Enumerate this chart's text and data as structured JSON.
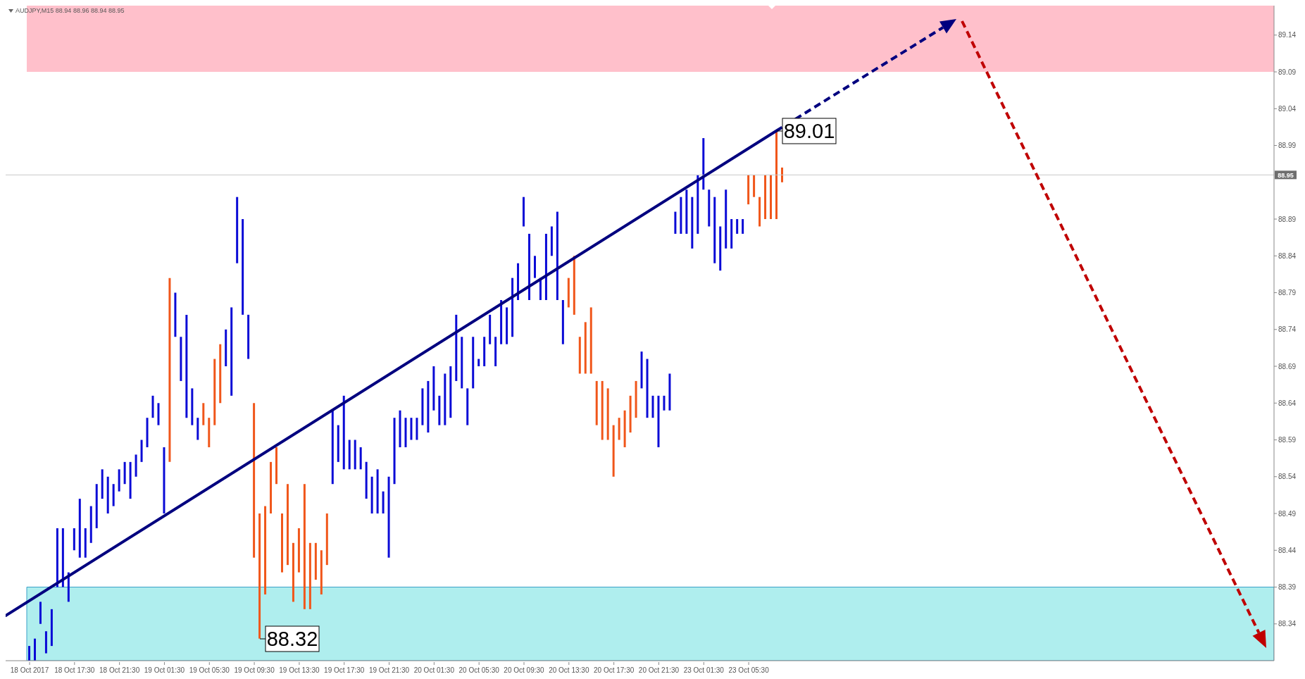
{
  "chart_data": {
    "type": "bar",
    "title": "AUDJPY,M15  88.94 88.96 88.94 88.95",
    "categories": [
      "18 Oct 2017",
      null,
      null,
      null,
      null,
      null,
      null,
      null,
      "18 Oct 17:30",
      null,
      null,
      null,
      null,
      null,
      null,
      null,
      "18 Oct 21:30",
      null,
      null,
      null,
      null,
      null,
      null,
      null,
      "19 Oct 01:30",
      null,
      null,
      null,
      null,
      null,
      null,
      null,
      "19 Oct 05:30",
      null,
      null,
      null,
      null,
      null,
      null,
      null,
      "19 Oct 09:30",
      null,
      null,
      null,
      null,
      null,
      null,
      null,
      "19 Oct 13:30",
      null,
      null,
      null,
      null,
      null,
      null,
      null,
      "19 Oct 17:30",
      null,
      null,
      null,
      null,
      null,
      null,
      null,
      "19 Oct 21:30",
      null,
      null,
      null,
      null,
      null,
      null,
      null,
      "20 Oct 01:30",
      null,
      null,
      null,
      null,
      null,
      null,
      null,
      "20 Oct 05:30",
      null,
      null,
      null,
      null,
      null,
      null,
      null,
      "20 Oct 09:30",
      null,
      null,
      null,
      null,
      null,
      null,
      null,
      "20 Oct 13:30",
      null,
      null,
      null,
      null,
      null,
      null,
      null,
      "20 Oct 17:30",
      null,
      null,
      null,
      null,
      null,
      null,
      null,
      "20 Oct 21:30",
      null,
      null,
      null,
      null,
      null,
      null,
      null,
      "23 Oct 01:30",
      null,
      null,
      null,
      null,
      null,
      null,
      null,
      "23 Oct 05:30",
      null,
      null,
      null,
      null,
      null,
      null,
      null,
      null,
      null,
      null,
      null,
      null,
      null,
      null,
      null,
      null,
      null,
      null,
      null,
      null,
      null,
      null,
      null,
      null,
      null,
      null,
      null,
      null,
      null,
      null,
      null,
      null,
      null,
      null,
      null,
      null,
      null,
      null,
      null,
      null,
      null,
      null,
      null,
      null,
      null,
      null,
      null,
      null,
      null,
      null,
      null,
      null,
      null,
      null,
      null,
      null,
      null,
      null,
      null,
      null,
      null,
      null,
      null,
      null,
      null,
      null,
      null,
      null,
      null,
      null,
      null,
      null,
      null,
      null,
      null,
      null,
      null,
      null,
      null,
      null,
      null,
      null,
      null,
      null,
      null,
      null,
      null,
      null,
      null,
      null,
      null,
      null,
      null
    ],
    "base": [
      88.29,
      88.29,
      88.34,
      88.3,
      88.31,
      88.39,
      88.39,
      88.37,
      88.44,
      88.43,
      88.43,
      88.45,
      88.47,
      88.51,
      88.49,
      88.5,
      88.52,
      88.53,
      88.51,
      88.54,
      88.56,
      88.58,
      88.62,
      88.61,
      88.49,
      88.56,
      88.73,
      88.67,
      88.62,
      88.61,
      88.59,
      88.61,
      88.58,
      88.61,
      88.64,
      88.69,
      88.65,
      88.83,
      88.76,
      88.7,
      88.43,
      88.32,
      88.38,
      88.49,
      88.53,
      88.41,
      88.42,
      88.37,
      88.41,
      88.36,
      88.36,
      88.4,
      88.38,
      88.42,
      88.53,
      88.56,
      88.55,
      88.55,
      88.55,
      88.55,
      88.51,
      88.49,
      88.49,
      88.49,
      88.43,
      88.53,
      88.58,
      88.58,
      88.59,
      88.59,
      88.61,
      88.6,
      88.63,
      88.61,
      88.61,
      88.62,
      88.67,
      88.66,
      88.61,
      88.66,
      88.69,
      88.69,
      88.72,
      88.69,
      88.72,
      88.72,
      88.73,
      88.78,
      88.88,
      88.78,
      88.81,
      88.78,
      88.78,
      88.84,
      88.78,
      88.72,
      88.77,
      88.76,
      88.68,
      88.68,
      88.68,
      88.61,
      88.59,
      88.59,
      88.54,
      88.59,
      88.58,
      88.6,
      88.62,
      88.66,
      88.62,
      88.62,
      88.58,
      88.63,
      88.63,
      88.87,
      88.87,
      88.87,
      88.85,
      88.87,
      88.93,
      88.88,
      88.83,
      88.82,
      88.85,
      88.85,
      88.87,
      88.87,
      88.91,
      88.92,
      88.88,
      88.89,
      88.89,
      88.89,
      88.94,
      null,
      null,
      null,
      null,
      null,
      null,
      null,
      null,
      null,
      null,
      null,
      null,
      null,
      null,
      null,
      null,
      null,
      null,
      null,
      null,
      null,
      null,
      null,
      null,
      null,
      null,
      null,
      null,
      null,
      null,
      null,
      null,
      null,
      null,
      null,
      null,
      null,
      null,
      null,
      null,
      null,
      null,
      null,
      null,
      null,
      null,
      null,
      null,
      null,
      null,
      null,
      null,
      null,
      null,
      null,
      null,
      null,
      null,
      null,
      null,
      null,
      null,
      null,
      null,
      null,
      null,
      null,
      null,
      null,
      null,
      null,
      null,
      null,
      null,
      null,
      null,
      null,
      null,
      null,
      null,
      null,
      null,
      null,
      null,
      null,
      null,
      null
    ],
    "values": [
      0.02,
      0.03,
      0.03,
      0.03,
      0.05,
      0.08,
      0.08,
      0.04,
      0.03,
      0.08,
      0.04,
      0.05,
      0.06,
      0.04,
      0.05,
      0.03,
      0.03,
      0.03,
      0.05,
      0.03,
      0.03,
      0.04,
      0.03,
      0.03,
      0.09,
      0.25,
      0.06,
      0.06,
      0.14,
      0.05,
      0.03,
      0.03,
      0.04,
      0.09,
      0.08,
      0.05,
      0.12,
      0.09,
      0.13,
      0.06,
      0.21,
      0.17,
      0.12,
      0.07,
      0.05,
      0.08,
      0.11,
      0.08,
      0.06,
      0.17,
      0.09,
      0.05,
      0.06,
      0.07,
      0.1,
      0.05,
      0.1,
      0.04,
      0.04,
      0.03,
      0.05,
      0.05,
      0.06,
      0.03,
      0.11,
      0.09,
      0.05,
      0.04,
      0.03,
      0.03,
      0.05,
      0.07,
      0.06,
      0.04,
      0.07,
      0.07,
      0.09,
      0.07,
      0.05,
      0.07,
      0.01,
      0.04,
      0.04,
      0.04,
      0.06,
      0.05,
      0.08,
      0.05,
      0.04,
      0.09,
      0.03,
      0.03,
      0.09,
      0.04,
      0.12,
      0.06,
      0.04,
      0.08,
      0.05,
      0.07,
      0.09,
      0.06,
      0.08,
      0.07,
      0.07,
      0.03,
      0.05,
      0.05,
      0.05,
      0.05,
      0.08,
      0.03,
      0.07,
      0.02,
      0.05,
      0.03,
      0.05,
      0.06,
      0.07,
      0.08,
      0.07,
      0.05,
      0.09,
      0.06,
      0.08,
      0.04,
      0.02,
      0.02,
      0.04,
      0.03,
      0.04,
      0.06,
      0.06,
      0.12,
      0.02,
      null,
      null,
      null,
      null,
      null,
      null,
      null,
      null,
      null,
      null,
      null,
      null,
      null,
      null,
      null,
      null,
      null,
      null,
      null,
      null,
      null,
      null,
      null,
      null,
      null,
      null,
      null,
      null,
      null,
      null,
      null,
      null,
      null,
      null,
      null,
      null,
      null,
      null,
      null,
      null,
      null,
      null,
      null,
      null,
      null,
      null,
      null,
      null,
      null,
      null,
      null,
      null,
      null,
      null,
      null,
      null,
      null,
      null,
      null,
      null,
      null,
      null,
      null,
      null,
      null,
      null,
      null,
      null,
      null,
      null,
      null,
      null,
      null,
      null,
      null,
      null,
      null,
      null,
      null,
      null,
      null,
      null,
      null,
      null,
      null,
      null,
      null
    ],
    "colors": [
      "#0a0ad6",
      "#0a0ad6",
      "#0a0ad6",
      "#0a0ad6",
      "#0a0ad6",
      "#0a0ad6",
      "#0a0ad6",
      "#0a0ad6",
      "#0a0ad6",
      "#0a0ad6",
      "#0a0ad6",
      "#0a0ad6",
      "#0a0ad6",
      "#0a0ad6",
      "#0a0ad6",
      "#0a0ad6",
      "#0a0ad6",
      "#0a0ad6",
      "#0a0ad6",
      "#0a0ad6",
      "#0a0ad6",
      "#0a0ad6",
      "#0a0ad6",
      "#0a0ad6",
      "#0a0ad6",
      "#f0561a",
      "#0a0ad6",
      "#0a0ad6",
      "#0a0ad6",
      "#0a0ad6",
      "#0a0ad6",
      "#f0561a",
      "#f0561a",
      "#f0561a",
      "#f0561a",
      "#0a0ad6",
      "#0a0ad6",
      "#0a0ad6",
      "#0a0ad6",
      "#0a0ad6",
      "#f0561a",
      "#f0561a",
      "#f0561a",
      "#f0561a",
      "#f0561a",
      "#f0561a",
      "#f0561a",
      "#f0561a",
      "#f0561a",
      "#f0561a",
      "#f0561a",
      "#f0561a",
      "#f0561a",
      "#f0561a",
      "#0a0ad6",
      "#0a0ad6",
      "#0a0ad6",
      "#0a0ad6",
      "#0a0ad6",
      "#0a0ad6",
      "#0a0ad6",
      "#0a0ad6",
      "#0a0ad6",
      "#0a0ad6",
      "#0a0ad6",
      "#0a0ad6",
      "#0a0ad6",
      "#0a0ad6",
      "#0a0ad6",
      "#0a0ad6",
      "#0a0ad6",
      "#0a0ad6",
      "#0a0ad6",
      "#0a0ad6",
      "#0a0ad6",
      "#0a0ad6",
      "#0a0ad6",
      "#0a0ad6",
      "#0a0ad6",
      "#0a0ad6",
      "#0a0ad6",
      "#0a0ad6",
      "#0a0ad6",
      "#0a0ad6",
      "#0a0ad6",
      "#0a0ad6",
      "#0a0ad6",
      "#0a0ad6",
      "#0a0ad6",
      "#0a0ad6",
      "#0a0ad6",
      "#0a0ad6",
      "#0a0ad6",
      "#0a0ad6",
      "#0a0ad6",
      "#0a0ad6",
      "#f0561a",
      "#f0561a",
      "#f0561a",
      "#f0561a",
      "#f0561a",
      "#f0561a",
      "#f0561a",
      "#f0561a",
      "#f0561a",
      "#f0561a",
      "#f0561a",
      "#f0561a",
      "#f0561a",
      "#0a0ad6",
      "#0a0ad6",
      "#0a0ad6",
      "#0a0ad6",
      "#0a0ad6",
      "#0a0ad6",
      "#0a0ad6",
      "#0a0ad6",
      "#0a0ad6",
      "#0a0ad6",
      "#0a0ad6",
      "#0a0ad6",
      "#0a0ad6",
      "#0a0ad6",
      "#0a0ad6",
      "#0a0ad6",
      "#0a0ad6",
      "#0a0ad6",
      "#0a0ad6",
      "#f0561a",
      "#f0561a",
      "#f0561a",
      "#f0561a",
      "#f0561a",
      "#f0561a",
      "#f0561a",
      null,
      null,
      null,
      null,
      null,
      null,
      null,
      null,
      null,
      null,
      null,
      null,
      null,
      null,
      null,
      null,
      null,
      null,
      null,
      null,
      null,
      null,
      null,
      null,
      null,
      null,
      null,
      null,
      null,
      null,
      null,
      null,
      null,
      null,
      null,
      null,
      null,
      null,
      null,
      null,
      null,
      null,
      null,
      null,
      null,
      null,
      null,
      null,
      null,
      null,
      null,
      null,
      null,
      null,
      null,
      null,
      null,
      null,
      null,
      null,
      null,
      null,
      null,
      null,
      null,
      null,
      null,
      null,
      null,
      null,
      null,
      null,
      null,
      null,
      null,
      null,
      null,
      null,
      null,
      null,
      null,
      null,
      null,
      null,
      null,
      null,
      null
    ],
    "ylim": [
      88.29,
      89.18
    ],
    "yticks": [
      88.34,
      88.39,
      88.44,
      88.49,
      88.54,
      88.59,
      88.64,
      88.69,
      88.74,
      88.79,
      88.84,
      88.89,
      88.99,
      89.04,
      89.09,
      89.14
    ],
    "bands": [
      {
        "axis": "y",
        "from": 89.09,
        "to": 89.18,
        "color": "#ffc0cb"
      },
      {
        "axis": "y",
        "from": 88.29,
        "to": 88.39,
        "color": "#afeeee"
      }
    ],
    "ref_lines": [
      {
        "axis": "y",
        "value": 88.95,
        "label": "88.95",
        "color": "#c8c8c8"
      }
    ],
    "annotations": [
      "89.01",
      "88.32"
    ]
  }
}
